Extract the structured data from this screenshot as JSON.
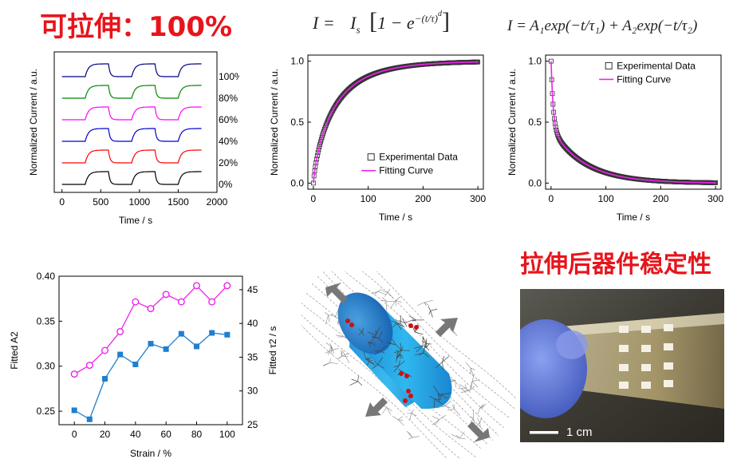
{
  "headline_left": "可拉伸：100%",
  "headline_right": "拉伸后器件稳定性",
  "equation_1": {
    "lhs": "I =",
    "is": "I",
    "is_sub": "s",
    "bracket": "1 − e",
    "exp": "−(t/τ)",
    "exp_sup": "d"
  },
  "equation_2": {
    "text": "I = A₁exp(−t/τ₁) + A₂exp(−t/τ₂)"
  },
  "scale_bar_label": "1 cm",
  "chart_data": [
    {
      "type": "line",
      "id": "strain-transients",
      "xlabel": "Time / s",
      "ylabel": "Normalized Current / a.u.",
      "xlim": [
        -100,
        2000
      ],
      "xticks": [
        0,
        500,
        1000,
        1500,
        2000
      ],
      "series": [
        {
          "name": "0%",
          "color": "#000000",
          "offset": 0
        },
        {
          "name": "20%",
          "color": "#ff0000",
          "offset": 1
        },
        {
          "name": "40%",
          "color": "#0000cc",
          "offset": 2
        },
        {
          "name": "60%",
          "color": "#ff00ff",
          "offset": 3
        },
        {
          "name": "80%",
          "color": "#008800",
          "offset": 4
        },
        {
          "name": "100%",
          "color": "#000080",
          "offset": 5
        }
      ],
      "pulses": [
        [
          300,
          600
        ],
        [
          900,
          1200
        ],
        [
          1500,
          1800
        ]
      ]
    },
    {
      "type": "scatter",
      "id": "rise-fit",
      "equation": "I = I_s[1 − e^(−(t/τ)^d)]",
      "xlabel": "Time / s",
      "ylabel": "Normalized Current / a.u.",
      "xlim": [
        -10,
        310
      ],
      "ylim": [
        -0.05,
        1.05
      ],
      "xticks": [
        0,
        100,
        200,
        300
      ],
      "yticks": [
        0.0,
        0.5,
        1.0
      ],
      "legend": [
        "Experimental Data",
        "Fitting Curve"
      ],
      "legend_position": "bottom-right",
      "tau": 40,
      "d": 0.8
    },
    {
      "type": "scatter",
      "id": "decay-fit",
      "equation": "I = A1 exp(−t/τ1) + A2 exp(−t/τ2)",
      "xlabel": "Time / s",
      "ylabel": "Normalized Current / a.u.",
      "xlim": [
        -10,
        310
      ],
      "ylim": [
        -0.05,
        1.05
      ],
      "xticks": [
        0,
        100,
        200,
        300
      ],
      "yticks": [
        0.0,
        0.5,
        1.0
      ],
      "legend": [
        "Experimental Data",
        "Fitting Curve"
      ],
      "legend_position": "top-right",
      "A1": 0.55,
      "tau1": 4,
      "A2": 0.45,
      "tau2": 60
    },
    {
      "type": "line",
      "id": "fitted-params",
      "xlabel": "Strain / %",
      "ylabel_left": "Fitted A2",
      "ylabel_right": "Fitted τ2 / s",
      "x": [
        0,
        10,
        20,
        30,
        40,
        50,
        60,
        70,
        80,
        90,
        100
      ],
      "xticks": [
        0,
        20,
        40,
        60,
        80,
        100
      ],
      "ylim_left": [
        0.235,
        0.4
      ],
      "yticks_left": [
        0.25,
        0.3,
        0.35,
        0.4
      ],
      "ylim_right": [
        25,
        47
      ],
      "yticks_right": [
        25,
        30,
        35,
        40,
        45
      ],
      "series": [
        {
          "name": "A2",
          "axis": "left",
          "color": "#1e7fd0",
          "marker": "square",
          "values": [
            0.251,
            0.241,
            0.286,
            0.313,
            0.302,
            0.325,
            0.319,
            0.336,
            0.322,
            0.337,
            0.335
          ]
        },
        {
          "name": "tau2",
          "axis": "right",
          "color": "#ee22ee",
          "marker": "circle",
          "values": [
            32.5,
            33.8,
            36.0,
            38.8,
            43.2,
            42.2,
            44.3,
            43.2,
            45.6,
            43.2,
            45.6
          ]
        }
      ]
    }
  ]
}
